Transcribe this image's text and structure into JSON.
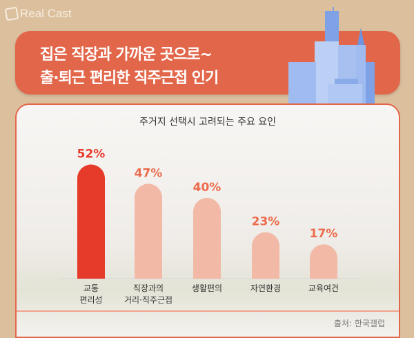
{
  "brand": "Real Cast",
  "header": {
    "line1": "집은 직장과 가까운 곳으로~",
    "line2": "출·퇴근 편리한 직주근접 인기"
  },
  "chart_data": {
    "type": "bar",
    "title": "주거지 선택시 고려되는 주요 요인",
    "categories": [
      [
        "교통",
        "편리성"
      ],
      [
        "직장과의",
        "거리·직주근접"
      ],
      [
        "생활편의"
      ],
      [
        "자연환경"
      ],
      [
        "교육여건"
      ]
    ],
    "values": [
      52,
      47,
      40,
      23,
      17
    ],
    "labels": [
      "52%",
      "47%",
      "40%",
      "23%",
      "17%"
    ],
    "unit": "%",
    "ylim": [
      0,
      55
    ],
    "colors": {
      "highlight": "#e63b2b",
      "normal": "#f2b9a6",
      "label_highlight": "#e63b2b",
      "label_normal": "#ec6b4c"
    }
  },
  "source": "출처: 한국갤럽"
}
